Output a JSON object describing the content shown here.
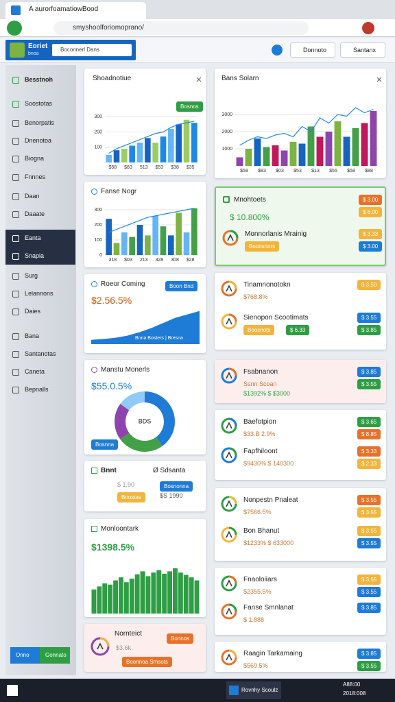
{
  "browser": {
    "tab_title": "A aurorfoamatiowBood",
    "url": "smyshoolforiomoprano/"
  },
  "header": {
    "brand": "Eoriet",
    "brand_sub": "bnoa",
    "search": "Boconnerl Dans",
    "buttons": [
      "Donnoto",
      "Santanx"
    ]
  },
  "sidebar": {
    "items": [
      "Besstnoh",
      "Soostotas",
      "Benorpatis",
      "Dnenotoa",
      "Biogna",
      "Fnnnes",
      "Daan",
      "Daaate",
      "Eanta",
      "Snapia",
      "Surg",
      "Lelannons",
      "Daies",
      "Bana",
      "Santanotas",
      "Caneta",
      "Bepnalls"
    ],
    "buttons": [
      "Onno",
      "Gonnato"
    ]
  },
  "left": [
    {
      "title": "Shoadnotiue",
      "badge": "Bosnos",
      "chart": {
        "ylim": [
          0,
          400
        ],
        "yticks": [
          100,
          200,
          300
        ],
        "categories": [
          "$58",
          null,
          "$83",
          null,
          "513",
          null,
          "$53",
          null,
          "$38",
          null,
          "$35",
          null
        ],
        "values": [
          50,
          80,
          90,
          110,
          130,
          160,
          130,
          170,
          220,
          250,
          280,
          260
        ],
        "line": [
          60,
          90,
          110,
          130,
          150,
          170,
          190,
          200,
          230,
          250,
          260,
          270
        ],
        "palette": [
          "#64b5f6",
          "#1565c0",
          "#9ccc65",
          "#1e88e5"
        ]
      }
    },
    {
      "title": "Fanse Nogr",
      "chart": {
        "ylim": [
          0,
          350
        ],
        "yticks": [
          0,
          100,
          200,
          300
        ],
        "categories": [
          "318",
          null,
          "$03",
          null,
          "213",
          null,
          "328",
          null,
          "308",
          null,
          "$28",
          null
        ],
        "values": [
          240,
          80,
          150,
          120,
          200,
          130,
          260,
          190,
          130,
          280,
          150,
          310
        ],
        "line": [
          150,
          170,
          190,
          210,
          230,
          250,
          260,
          270,
          280,
          290,
          300,
          310
        ],
        "palette": [
          "#1565c0",
          "#7cb342",
          "#64b5f6",
          "#43a047"
        ]
      }
    },
    {
      "title": "Roeor Coming",
      "badge": "Boon Bnd",
      "value": "$2.56.5%",
      "caption": "Bnna Bosters | Bresna",
      "area": [
        10,
        12,
        15,
        20,
        28,
        38,
        50,
        62,
        70,
        78
      ]
    },
    {
      "title": "Manstu Monerls",
      "value": "$55.0.5%",
      "center": "BDS",
      "badge": "Bosnna",
      "donut": {
        "values": [
          40,
          25,
          20,
          15
        ],
        "colors": [
          "#1e7bd6",
          "#43a047",
          "#8e44ad",
          "#90caf9"
        ]
      }
    },
    {
      "title": "Bnnt",
      "title2": "Ø Sdsanta",
      "value": "$ 1.90",
      "value2": "$S 1990",
      "badge": "Boostas",
      "badge2": "Bosnonna"
    },
    {
      "title": "Monloontark",
      "value": "$1398.5%",
      "bars": [
        40,
        45,
        50,
        48,
        55,
        60,
        52,
        58,
        65,
        70,
        62,
        68,
        72,
        66,
        70,
        75,
        68,
        64,
        60,
        55
      ]
    },
    {
      "title": "Nornteict",
      "value": "$3.6k",
      "badge": "Bonnos",
      "badge2": "Boonnoa Smsots"
    }
  ],
  "right": [
    {
      "title": "Bans Solarn",
      "chart": {
        "ylim": [
          0,
          4000
        ],
        "yticks": [
          1000,
          2000,
          3000
        ],
        "categories": [
          "$58",
          null,
          "$83",
          null,
          "$03",
          null,
          "$53",
          null,
          "$13",
          null,
          "$55",
          null,
          "$58",
          null,
          "$88",
          null
        ],
        "values": [
          500,
          1000,
          1600,
          1100,
          1200,
          900,
          1400,
          1300,
          2300,
          1700,
          2000,
          2600,
          1700,
          2200,
          2500,
          3200
        ],
        "line": [
          1200,
          1500,
          1700,
          1600,
          1800,
          1900,
          1700,
          2300,
          2000,
          2800,
          2500,
          3000,
          2900,
          3400,
          3100,
          3300
        ],
        "palette": [
          "#8e44ad",
          "#7cb342",
          "#1565c0",
          "#43a047",
          "#c2185b"
        ]
      }
    },
    {
      "title": "Mnohtoets",
      "value": "$ 10.800%",
      "badges": [
        "$ 3.00",
        "$ 8.00"
      ],
      "row": {
        "title": "Monnorlanis Mrainig",
        "sub_badges": [
          "Boonsnnrs"
        ],
        "badges": [
          "$ 3.33",
          "$ 3.00"
        ]
      }
    },
    {
      "title": "Tinamnonotokn",
      "value": "$768.8%",
      "badges": [
        "$ 3.50"
      ],
      "row": {
        "title": "Sienopon Scootimats",
        "sub_badges": [
          "Boocnots",
          "$ 6.33"
        ],
        "badges": [
          "$ 3.55",
          "$ 3.85"
        ]
      }
    },
    {
      "title": "Fsabnanon",
      "value": "Ssnn Scoan",
      "value2": "$1392%  $ $3000",
      "badges": [
        "$ 3.85",
        "$ 3.55"
      ]
    },
    {
      "title": "Baefotpion",
      "value": "$33.B 2.9%",
      "badges": [
        "$ 3.65",
        "$ 8.85"
      ],
      "row": {
        "title": "Fapfhiloont",
        "value": "$9430%  $ 140300",
        "badges": [
          "$ 3.33",
          "$ 2.33"
        ]
      }
    },
    {
      "title": "Nonpestn Pnaleat",
      "value": "$7566.5%",
      "badges": [
        "$ 3.55",
        "$ 3.55"
      ],
      "row": {
        "title": "Bon Bhanut",
        "value": "$1233%  $ 633000",
        "badges": [
          "$ 3.55",
          "$ 3.55"
        ]
      }
    },
    {
      "title": "Fnaoloiiars",
      "value": "$2355.5%",
      "badges": [
        "$ 3.55",
        "$ 3.55"
      ],
      "row": {
        "title": "Fanse Smnlanat",
        "value": "$ 1.888",
        "badges": [
          "$ 3.85"
        ]
      }
    },
    {
      "title": "Raagin Tarkamaing",
      "value": "$569.5%",
      "badges": [
        "$ 3.85",
        "$ 3.55"
      ]
    }
  ],
  "taskbar": {
    "app": "Rovnhy Scoulz",
    "time": "A88:00",
    "date": "2018:008"
  }
}
